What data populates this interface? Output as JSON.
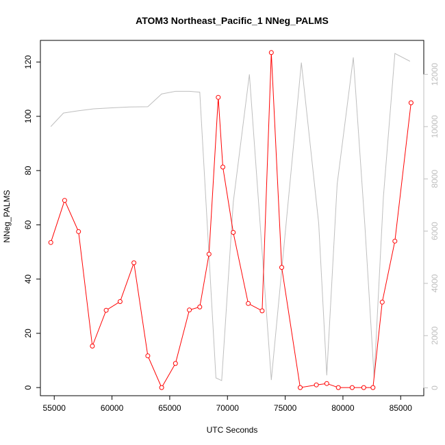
{
  "chart_data": {
    "type": "line",
    "title": "ATOM3 Northeast_Pacific_1 NNeg_PALMS",
    "xlabel": "UTC Seconds",
    "ylabel": "NNeg_PALMS",
    "xlim": [
      53800,
      87000
    ],
    "ylim": [
      -3,
      128
    ],
    "y2lim": [
      -300,
      13300
    ],
    "x_ticks": [
      55000,
      60000,
      65000,
      70000,
      75000,
      80000,
      85000
    ],
    "y_ticks": [
      0,
      20,
      40,
      60,
      80,
      100,
      120
    ],
    "y2_ticks": [
      0,
      2000,
      4000,
      6000,
      8000,
      10000,
      12000
    ],
    "grid": false,
    "legend": "none",
    "series": [
      {
        "axis": "left",
        "color": "#ff0000",
        "marker": "open-circle",
        "x": [
          54700,
          55900,
          57100,
          58300,
          59500,
          60700,
          61900,
          63100,
          64300,
          65500,
          66700,
          67600,
          68400,
          69200,
          69600,
          70500,
          71800,
          73000,
          73800,
          74700,
          76300,
          77700,
          78600,
          79600,
          80800,
          81800,
          82600,
          83400,
          84500,
          85900
        ],
        "y": [
          53.5,
          69,
          57.5,
          15.3,
          28.5,
          31.7,
          46,
          11.7,
          0,
          8.9,
          28.6,
          29.7,
          49.2,
          107,
          81.3,
          57.2,
          31,
          28.3,
          123.5,
          44.3,
          0,
          1,
          1.5,
          0,
          0,
          0,
          0,
          31.5,
          54,
          105
        ]
      },
      {
        "axis": "right",
        "color": "#bebebe",
        "marker": "none",
        "x": [
          54700,
          55800,
          57000,
          58400,
          60000,
          61500,
          63100,
          64300,
          65500,
          66700,
          67600,
          69000,
          69500,
          70500,
          71900,
          73800,
          76400,
          77900,
          78600,
          79500,
          80900,
          81900,
          82700,
          83500,
          84500,
          85800
        ],
        "y": [
          10000,
          10520,
          10600,
          10680,
          10720,
          10750,
          10760,
          11250,
          11350,
          11350,
          11320,
          380,
          280,
          7100,
          12000,
          300,
          12450,
          6300,
          480,
          7800,
          12650,
          6200,
          390,
          7300,
          12800,
          12500
        ]
      }
    ]
  }
}
